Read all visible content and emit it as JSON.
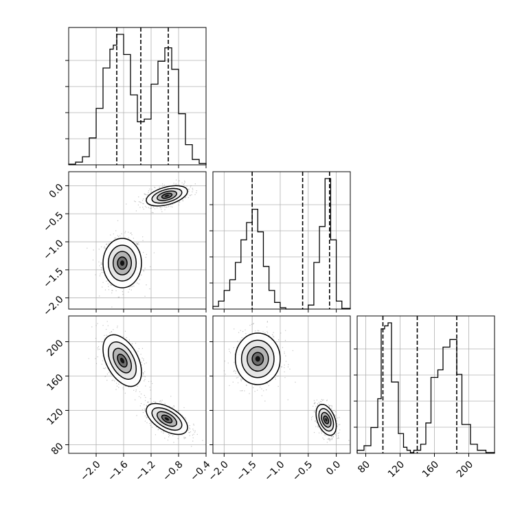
{
  "chart_data": {
    "type": "corner",
    "title": "",
    "grid": true,
    "colors": {
      "line": "#000000",
      "grid": "#b0b0b0",
      "points": "#808080"
    },
    "parameters": [
      {
        "name": "",
        "range": [
          -2.4,
          -0.4
        ],
        "ticks": [
          -2.0,
          -1.6,
          -1.2,
          -0.8,
          -0.4
        ],
        "tick_labels": [
          "−2.0",
          "−1.6",
          "−1.2",
          "−0.8",
          "−0.4"
        ]
      },
      {
        "name": "",
        "range": [
          -2.2,
          0.25
        ],
        "ticks": [
          -2.0,
          -1.5,
          -1.0,
          -0.5,
          0.0
        ],
        "tick_labels": [
          "−2.0",
          "−1.5",
          "−1.0",
          "−0.5",
          "0.0"
        ]
      },
      {
        "name": "",
        "range": [
          70,
          230
        ],
        "ticks": [
          80,
          120,
          160,
          200
        ],
        "tick_labels": [
          "80",
          "120",
          "160",
          "200"
        ]
      }
    ],
    "histograms": [
      {
        "param": 0,
        "quantiles": [
          -1.7,
          -1.35,
          -0.95
        ],
        "bin_edges": [
          -2.4,
          -2.3,
          -2.2,
          -2.1,
          -2.0,
          -1.9,
          -1.8,
          -1.75,
          -1.7,
          -1.65,
          -1.6,
          -1.5,
          -1.4,
          -1.3,
          -1.2,
          -1.1,
          -1.0,
          -0.95,
          -0.9,
          -0.8,
          -0.7,
          -0.6,
          -0.5,
          -0.4
        ],
        "counts": [
          0.005,
          0.02,
          0.06,
          0.2,
          0.42,
          0.72,
          0.86,
          0.89,
          0.97,
          0.97,
          0.82,
          0.52,
          0.32,
          0.34,
          0.6,
          0.77,
          0.87,
          0.87,
          0.71,
          0.38,
          0.15,
          0.04,
          0.01
        ]
      },
      {
        "param": 1,
        "quantiles": [
          -1.5,
          -0.6,
          -0.12
        ],
        "bin_edges": [
          -2.2,
          -2.1,
          -2.0,
          -1.9,
          -1.8,
          -1.7,
          -1.6,
          -1.5,
          -1.4,
          -1.3,
          -1.2,
          -1.1,
          -1.0,
          -0.9,
          -0.8,
          -0.7,
          -0.6,
          -0.5,
          -0.4,
          -0.3,
          -0.2,
          -0.1,
          0.0,
          0.1,
          0.25
        ],
        "counts": [
          0.02,
          0.06,
          0.14,
          0.22,
          0.35,
          0.52,
          0.65,
          0.75,
          0.58,
          0.32,
          0.14,
          0.05,
          0.01,
          0,
          0,
          0,
          0,
          0.03,
          0.35,
          0.62,
          0.98,
          0.52,
          0.06,
          0.005
        ]
      },
      {
        "param": 2,
        "quantiles": [
          100,
          140,
          186
        ],
        "bin_edges": [
          70,
          78,
          86,
          94,
          98,
          102,
          106,
          110,
          118,
          124,
          128,
          132,
          136,
          144,
          150,
          156,
          164,
          170,
          178,
          186,
          192,
          202,
          210,
          220,
          230
        ],
        "counts": [
          0.02,
          0.05,
          0.17,
          0.36,
          0.82,
          0.84,
          0.86,
          0.47,
          0.13,
          0.04,
          0.02,
          0.005,
          0.02,
          0.06,
          0.2,
          0.5,
          0.55,
          0.7,
          0.75,
          0.52,
          0.19,
          0.06,
          0.02,
          0.005
        ]
      }
    ],
    "density_2d": [
      {
        "x_param": 0,
        "y_param": 1,
        "clusters": [
          {
            "center": [
              -1.62,
              -1.38
            ],
            "sd": [
              0.14,
              0.22
            ],
            "rho": 0.0
          },
          {
            "center": [
              -0.97,
              -0.18
            ],
            "sd": [
              0.15,
              0.09
            ],
            "rho": 0.45
          }
        ]
      },
      {
        "x_param": 0,
        "y_param": 2,
        "clusters": [
          {
            "center": [
              -1.62,
              178
            ],
            "sd": [
              0.14,
              15
            ],
            "rho": -0.45
          },
          {
            "center": [
              -0.97,
              110
            ],
            "sd": [
              0.15,
              9
            ],
            "rho": -0.55
          }
        ]
      },
      {
        "x_param": 1,
        "y_param": 2,
        "clusters": [
          {
            "center": [
              -1.4,
              180
            ],
            "sd": [
              0.2,
              15
            ],
            "rho": 0.0
          },
          {
            "center": [
              -0.18,
              109
            ],
            "sd": [
              0.09,
              9
            ],
            "rho": -0.4
          }
        ]
      }
    ]
  }
}
